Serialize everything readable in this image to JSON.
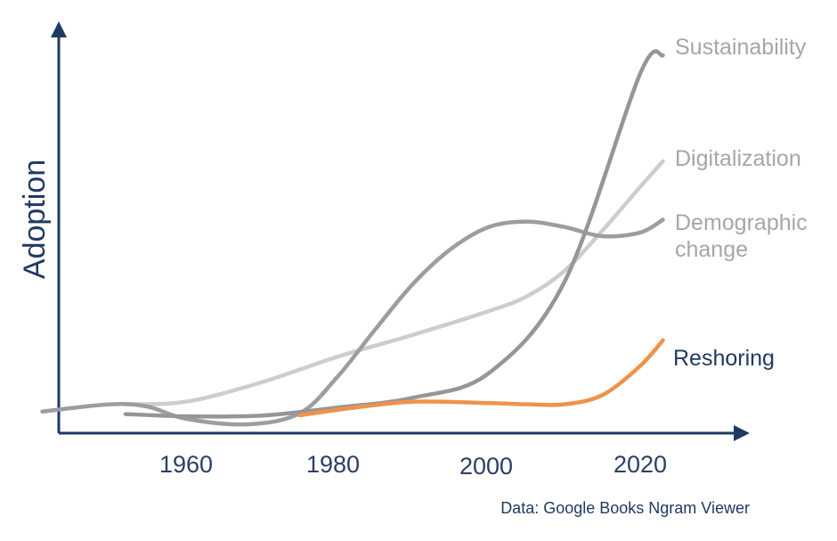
{
  "chart_data": {
    "type": "line",
    "ylabel": "Adoption",
    "xlabel": "",
    "source": "Data: Google Books Ngram Viewer",
    "x_ticks": [
      "1960",
      "1980",
      "2000",
      "2020"
    ],
    "grid": false,
    "legend": "inline labels at line ends (right)",
    "axis_color": "#1f3a63",
    "series": [
      {
        "name": "Sustainability",
        "color": "#95969a",
        "points": [
          [
            1952,
            1.8
          ],
          [
            1960,
            1.2
          ],
          [
            1970,
            1.4
          ],
          [
            1980,
            3.6
          ],
          [
            1990,
            6.3
          ],
          [
            2000,
            13.0
          ],
          [
            2010,
            38.0
          ],
          [
            2020,
            95.0
          ],
          [
            2023,
            100.0
          ]
        ]
      },
      {
        "name": "Digitalization",
        "color": "#cdcdcd",
        "points": [
          [
            1952,
            4.5
          ],
          [
            1960,
            5.2
          ],
          [
            1970,
            10.5
          ],
          [
            1980,
            17.5
          ],
          [
            1990,
            23.5
          ],
          [
            2000,
            30.0
          ],
          [
            2005,
            34.0
          ],
          [
            2010,
            41.0
          ],
          [
            2015,
            52.0
          ],
          [
            2020,
            64.0
          ],
          [
            2023,
            71.0
          ]
        ]
      },
      {
        "name": "Demographic change",
        "color": "#9d9c9e",
        "points": [
          [
            1941,
            2.5
          ],
          [
            1950,
            4.5
          ],
          [
            1955,
            3.8
          ],
          [
            1960,
            0.5
          ],
          [
            1968,
            -1.0
          ],
          [
            1975,
            2.0
          ],
          [
            1980,
            12.0
          ],
          [
            1985,
            25.0
          ],
          [
            1990,
            37.5
          ],
          [
            1995,
            47.0
          ],
          [
            2000,
            53.0
          ],
          [
            2005,
            54.5
          ],
          [
            2010,
            53.0
          ],
          [
            2015,
            50.5
          ],
          [
            2020,
            51.5
          ],
          [
            2023,
            55.0
          ]
        ]
      },
      {
        "name": "Reshoring",
        "color": "#f0924a",
        "points": [
          [
            1975,
            1.5
          ],
          [
            1982,
            3.5
          ],
          [
            1990,
            5.2
          ],
          [
            2000,
            4.8
          ],
          [
            2005,
            4.5
          ],
          [
            2010,
            4.5
          ],
          [
            2015,
            7.0
          ],
          [
            2020,
            15.0
          ],
          [
            2023,
            22.0
          ]
        ]
      }
    ],
    "label_colors": {
      "Sustainability": "#a6a6a6",
      "Digitalization": "#a6a6a6",
      "Demographic change": "#a6a6a6",
      "Reshoring": "#1f3a63"
    }
  },
  "labels": {
    "sustainability": "Sustainability",
    "digitalization": "Digitalization",
    "demographic_line1": "Demographic",
    "demographic_line2": "change",
    "reshoring": "Reshoring"
  }
}
